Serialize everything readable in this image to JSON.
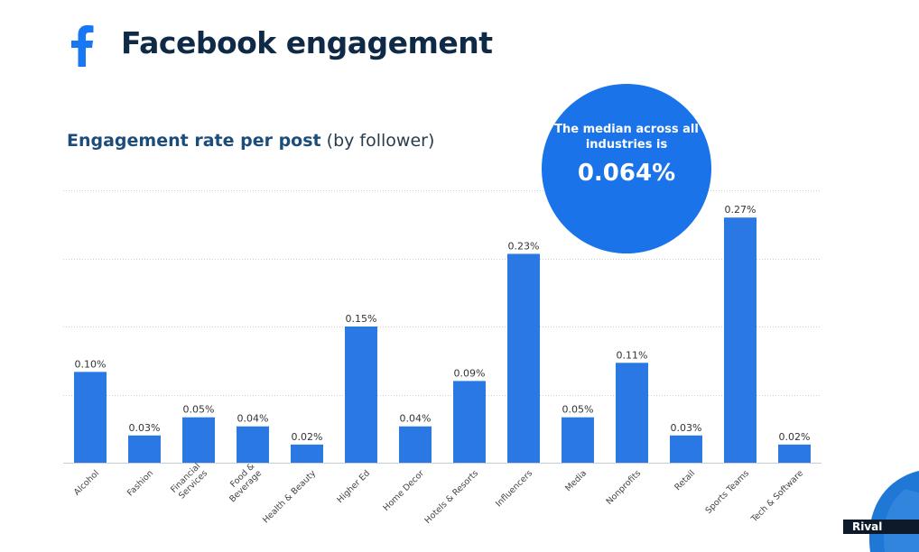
{
  "header": {
    "logo_icon": "facebook-f-icon",
    "title": "Facebook engagement"
  },
  "subtitle": {
    "bold": "Engagement rate per post",
    "light": "(by follower)"
  },
  "median_callout": {
    "label": "The median across all industries is",
    "value": "0.064%"
  },
  "branding": {
    "text": "Rival"
  },
  "colors": {
    "bar": "#2a78e4",
    "circle": "#1a73e8",
    "title": "#0e2a47"
  },
  "chart_data": {
    "type": "bar",
    "title": "Engagement rate per post (by follower)",
    "categories": [
      "Alcohol",
      "Fashion",
      "Financial Services",
      "Food & Beverage",
      "Health & Beauty",
      "Higher Ed",
      "Home Decor",
      "Hotels & Resorts",
      "Influencers",
      "Media",
      "Nonprofits",
      "Retail",
      "Sports Teams",
      "Tech & Software"
    ],
    "category_lines": [
      [
        "Alcohol"
      ],
      [
        "Fashion"
      ],
      [
        "Financial",
        "Services"
      ],
      [
        "Food &",
        "Beverage"
      ],
      [
        "Health & Beauty"
      ],
      [
        "Higher Ed"
      ],
      [
        "Home Decor"
      ],
      [
        "Hotels & Resorts"
      ],
      [
        "Influencers"
      ],
      [
        "Media"
      ],
      [
        "Nonprofits"
      ],
      [
        "Retail"
      ],
      [
        "Sports Teams"
      ],
      [
        "Tech & Software"
      ]
    ],
    "values": [
      0.1,
      0.03,
      0.05,
      0.04,
      0.02,
      0.15,
      0.04,
      0.09,
      0.23,
      0.05,
      0.11,
      0.03,
      0.27,
      0.02
    ],
    "value_labels": [
      "0.10%",
      "0.03%",
      "0.05%",
      "0.04%",
      "0.02%",
      "0.15%",
      "0.04%",
      "0.09%",
      "0.23%",
      "0.05%",
      "0.11%",
      "0.03%",
      "0.27%",
      "0.02%"
    ],
    "ylim": [
      0,
      0.3
    ],
    "grid": true,
    "gridlines": [
      0.075,
      0.15,
      0.225,
      0.3
    ],
    "legend": "none",
    "xlabel": "",
    "ylabel": ""
  }
}
